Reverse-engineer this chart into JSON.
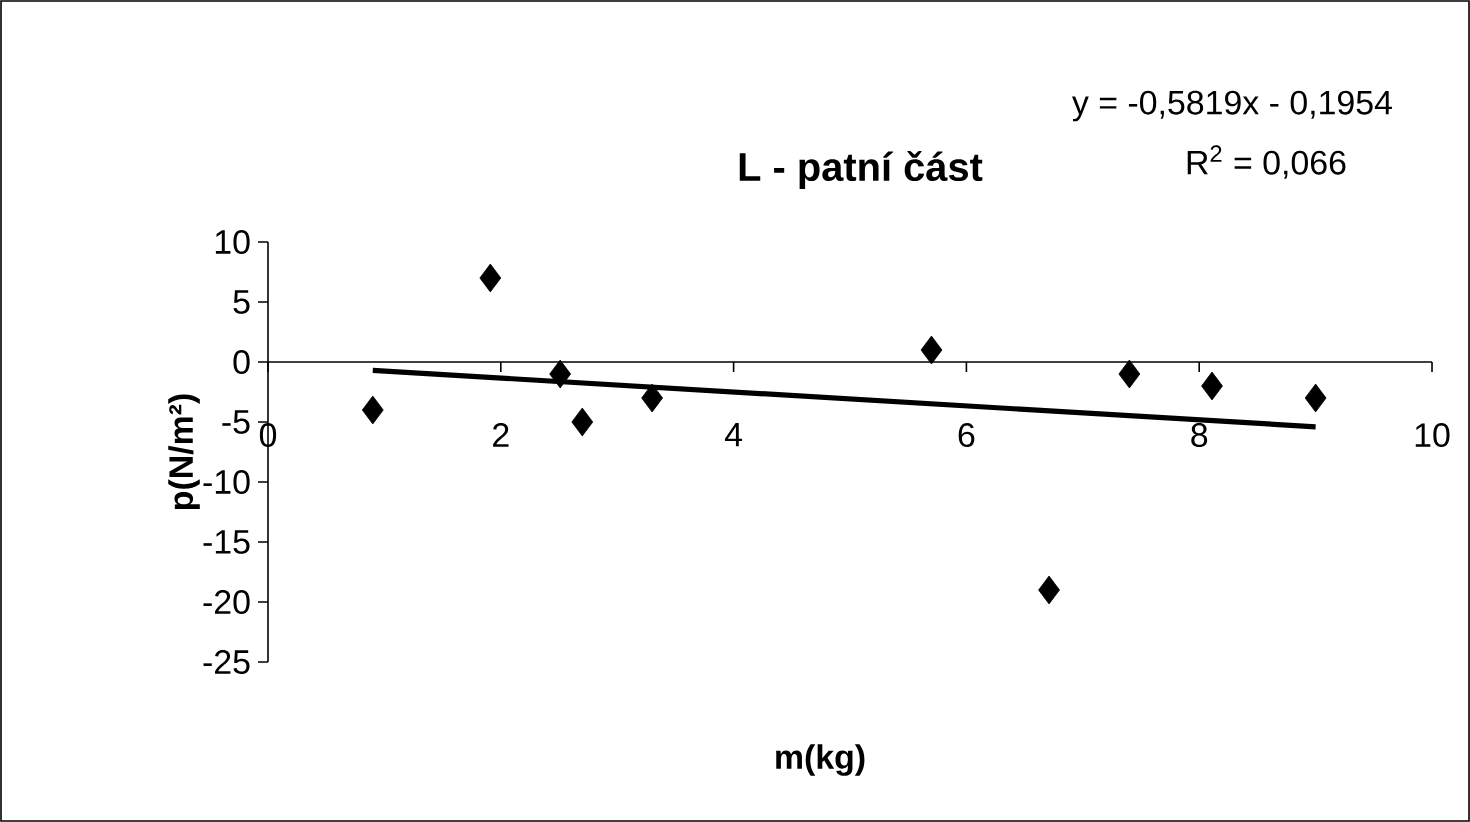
{
  "chart_data": {
    "type": "scatter",
    "title": "L - patní část",
    "xlabel": "m(kg)",
    "ylabel": "p(N/m²)",
    "annotations": [
      "y = -0,5819x - 0,1954",
      "R$^{2}$ = 0,066"
    ],
    "xlim": [
      0,
      10
    ],
    "xticks": [
      0,
      2,
      4,
      6,
      8,
      10
    ],
    "ylim": [
      -25,
      10
    ],
    "yticks": [
      -25,
      -20,
      -15,
      -10,
      -5,
      0,
      5,
      10
    ],
    "grid": false,
    "marker": "diamond",
    "series": [
      {
        "color": "#000000",
        "x": [
          0.9,
          1.91,
          2.51,
          2.7,
          3.3,
          5.7,
          6.71,
          7.4,
          8.11,
          9.0
        ],
        "values": [
          -4,
          7,
          -1,
          -5,
          -3,
          1,
          -19,
          -1,
          -2,
          -3
        ]
      },
      {
        "type": "line",
        "color": "#000000",
        "marker": "none",
        "x": [
          0.9,
          9.0
        ],
        "values": [
          -0.7,
          -5.4
        ]
      }
    ]
  }
}
